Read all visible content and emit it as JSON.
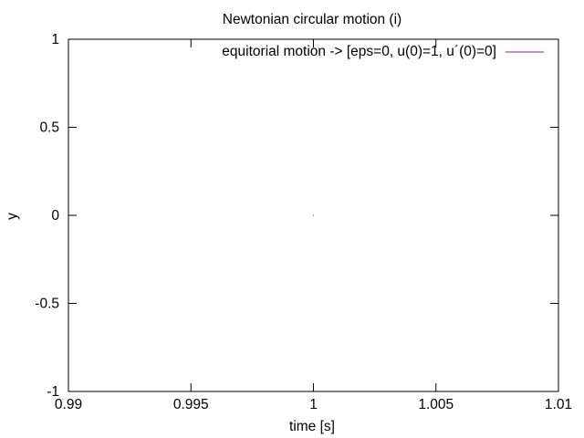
{
  "chart_data": {
    "type": "line",
    "title": "Newtonian circular motion (i)",
    "xlabel": "time [s]",
    "ylabel": "y",
    "xlim": [
      0.99,
      1.01
    ],
    "ylim": [
      -1,
      1
    ],
    "xticks": [
      0.99,
      0.995,
      1,
      1.005,
      1.01
    ],
    "xtick_labels": [
      "0.99",
      "0.995",
      "1",
      "1.005",
      "1.01"
    ],
    "yticks": [
      -1,
      -0.5,
      0,
      0.5,
      1
    ],
    "ytick_labels": [
      "-1",
      "-0.5",
      "0",
      "0.5",
      "1"
    ],
    "grid": false,
    "legend_position": "top-right",
    "series": [
      {
        "name": "equitorial motion -> [eps=0, u(0)=1, u´(0)=0]",
        "color": "#8b1a8b",
        "x": [
          1
        ],
        "y": [
          0
        ]
      }
    ]
  }
}
